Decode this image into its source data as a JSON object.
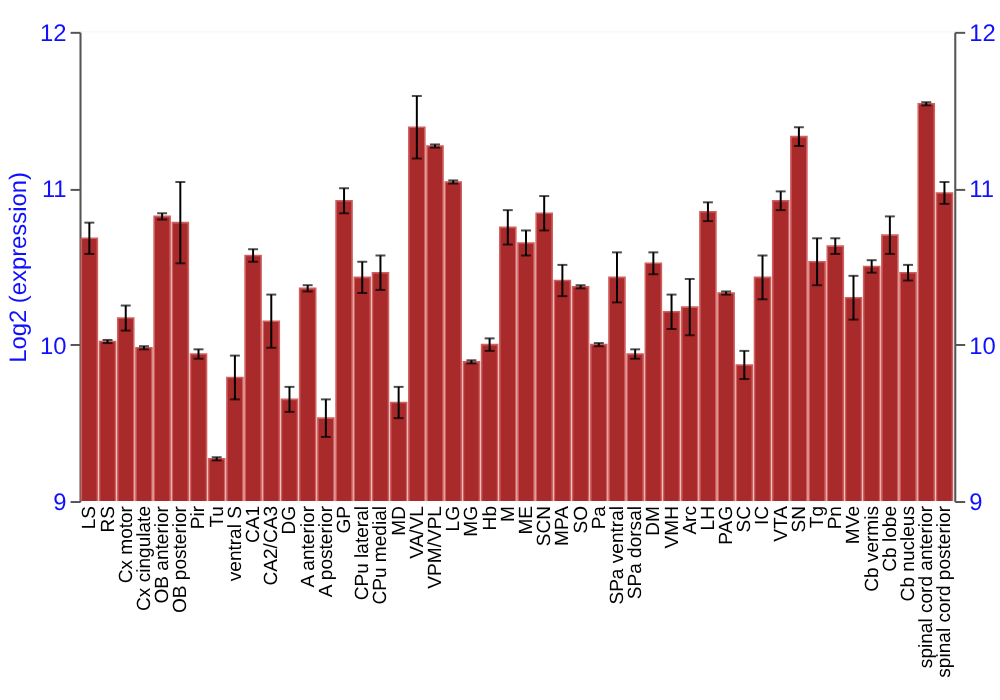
{
  "chart_data": {
    "type": "bar",
    "ylabel": "Log2 (expression)",
    "categories": [
      "LS",
      "RS",
      "Cx motor",
      "Cx cingulate",
      "OB anterior",
      "OB posterior",
      "Pir",
      "Tu",
      "ventral S",
      "CA1",
      "CA2/CA3",
      "DG",
      "A anterior",
      "A posterior",
      "GP",
      "CPu lateral",
      "CPu medial",
      "MD",
      "VA/VL",
      "VPM/VPL",
      "LG",
      "MG",
      "Hb",
      "M",
      "ME",
      "SCN",
      "MPA",
      "SO",
      "Pa",
      "SPa ventral",
      "SPa dorsal",
      "DM",
      "VMH",
      "Arc",
      "LH",
      "PAG",
      "SC",
      "IC",
      "VTA",
      "SN",
      "Tg",
      "Pn",
      "MVe",
      "Cb vermis",
      "Cb lobe",
      "Cb nucleus",
      "spinal cord anterior",
      "spinal cord posterior"
    ],
    "values": [
      10.68,
      10.02,
      10.17,
      9.98,
      10.82,
      10.78,
      9.94,
      9.27,
      9.79,
      10.57,
      10.15,
      9.65,
      10.36,
      9.53,
      10.92,
      10.43,
      10.46,
      9.63,
      11.39,
      11.27,
      11.04,
      9.89,
      10.0,
      10.75,
      10.65,
      10.84,
      10.41,
      10.37,
      10.0,
      10.43,
      9.94,
      10.52,
      10.21,
      10.24,
      10.85,
      10.33,
      9.87,
      10.43,
      10.92,
      11.33,
      10.53,
      10.63,
      10.3,
      10.5,
      10.7,
      10.46,
      11.54,
      10.97
    ],
    "errors": [
      0.1,
      0.01,
      0.08,
      0.01,
      0.02,
      0.26,
      0.03,
      0.01,
      0.14,
      0.04,
      0.17,
      0.08,
      0.02,
      0.12,
      0.08,
      0.1,
      0.11,
      0.1,
      0.2,
      0.01,
      0.01,
      0.01,
      0.04,
      0.11,
      0.08,
      0.11,
      0.1,
      0.01,
      0.01,
      0.16,
      0.03,
      0.07,
      0.11,
      0.18,
      0.06,
      0.01,
      0.09,
      0.14,
      0.06,
      0.06,
      0.15,
      0.05,
      0.14,
      0.04,
      0.12,
      0.05,
      0.01,
      0.07
    ],
    "color": "#a82a2a",
    "ylim": [
      9,
      12
    ],
    "yticks": [
      9,
      10,
      11,
      12
    ],
    "y2lim": [
      9,
      12
    ],
    "y2ticks": [
      9,
      10,
      11,
      12
    ],
    "grid": "y"
  }
}
